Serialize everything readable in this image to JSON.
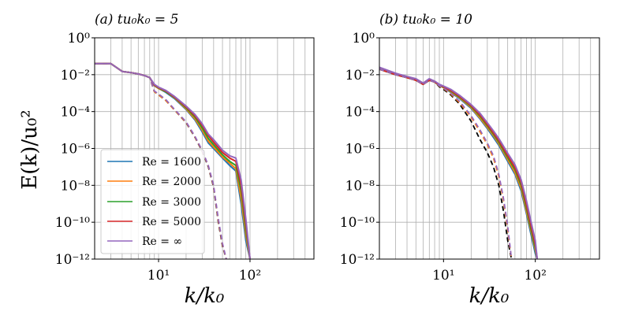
{
  "figure": {
    "ylabel": "E(k)/u₀²",
    "legend_title": "",
    "colors": {
      "re_1600": "#1f77b4",
      "re_2000": "#ff7f0e",
      "re_3000": "#2ca02c",
      "re_5000": "#d62728",
      "re_inf": "#9467bd",
      "grid": "#b0b0b0"
    }
  },
  "chart_data": [
    {
      "type": "line",
      "title": "(a) tu₀k₀ = 5",
      "xlabel": "k/k₀",
      "ylabel": "E(k)/u₀²",
      "xscale": "log",
      "yscale": "log",
      "xlim": [
        2,
        500
      ],
      "ylim": [
        1e-12,
        1
      ],
      "x_tick_labels": [
        "10¹",
        "10²"
      ],
      "y_tick_labels": [
        "10⁰",
        "10⁻²",
        "10⁻⁴",
        "10⁻⁶",
        "10⁻⁸",
        "10⁻¹⁰",
        "10⁻¹²"
      ],
      "grid": true,
      "legend": {
        "placement": "lower-left",
        "entries": [
          "Re = 1600",
          "Re = 2000",
          "Re = 3000",
          "Re = 5000",
          "Re = ∞"
        ]
      },
      "series": [
        {
          "name": "Re = 1600",
          "style": "solid",
          "x": [
            2,
            3,
            4,
            5,
            6,
            7,
            8,
            9,
            10,
            12,
            15,
            20,
            25,
            30,
            35,
            40,
            50,
            60,
            70,
            80,
            90,
            100
          ],
          "y": [
            0.04,
            0.04,
            0.015,
            0.013,
            0.011,
            0.009,
            0.007,
            0.0025,
            0.0018,
            0.0011,
            0.0005,
            0.00013,
            3.5e-05,
            8e-06,
            2e-06,
            1e-06,
            3e-07,
            1.2e-07,
            6e-08,
            1e-09,
            1e-11,
            1e-12
          ]
        },
        {
          "name": "Re = 2000",
          "style": "solid",
          "x": [
            2,
            3,
            4,
            5,
            6,
            7,
            8,
            9,
            10,
            12,
            15,
            20,
            25,
            30,
            35,
            40,
            50,
            60,
            70,
            80,
            90,
            100
          ],
          "y": [
            0.04,
            0.04,
            0.015,
            0.013,
            0.011,
            0.009,
            0.007,
            0.0026,
            0.0018,
            0.0012,
            0.00055,
            0.00014,
            4e-05,
            1e-05,
            2.5e-06,
            1.2e-06,
            3.5e-07,
            1.6e-07,
            8e-08,
            2e-09,
            2e-11,
            1e-12
          ]
        },
        {
          "name": "Re = 3000",
          "style": "solid",
          "x": [
            2,
            3,
            4,
            5,
            6,
            7,
            8,
            9,
            10,
            12,
            15,
            20,
            25,
            30,
            35,
            40,
            50,
            60,
            70,
            80,
            90,
            100
          ],
          "y": [
            0.04,
            0.04,
            0.015,
            0.013,
            0.011,
            0.009,
            0.007,
            0.0027,
            0.0019,
            0.0012,
            0.00058,
            0.00016,
            5e-05,
            1.3e-05,
            3.5e-06,
            1.6e-06,
            4.5e-07,
            2e-07,
            1.2e-07,
            5e-09,
            4e-11,
            1e-12
          ]
        },
        {
          "name": "Re = 5000",
          "style": "solid",
          "x": [
            2,
            3,
            4,
            5,
            6,
            7,
            8,
            9,
            10,
            12,
            15,
            20,
            25,
            30,
            35,
            40,
            50,
            60,
            70,
            80,
            90,
            100
          ],
          "y": [
            0.04,
            0.04,
            0.015,
            0.013,
            0.011,
            0.009,
            0.007,
            0.0028,
            0.002,
            0.0013,
            0.0006,
            0.00018,
            6e-05,
            1.8e-05,
            5e-06,
            2.2e-06,
            6e-07,
            3e-07,
            2e-07,
            1e-08,
            8e-11,
            1e-12
          ]
        },
        {
          "name": "Re = ∞",
          "style": "solid",
          "x": [
            2,
            3,
            4,
            5,
            6,
            7,
            8,
            9,
            10,
            12,
            15,
            20,
            25,
            30,
            35,
            40,
            50,
            60,
            70,
            80,
            90,
            100
          ],
          "y": [
            0.04,
            0.04,
            0.015,
            0.013,
            0.011,
            0.009,
            0.007,
            0.003,
            0.0021,
            0.0014,
            0.00065,
            0.0002,
            7e-05,
            2.2e-05,
            6e-06,
            3e-06,
            8e-07,
            4e-07,
            3e-07,
            2e-08,
            1.5e-10,
            1e-12
          ]
        },
        {
          "name": "filtered (black dashed)",
          "style": "dashed",
          "color": "#000000",
          "x": [
            2,
            3,
            4,
            5,
            6,
            7,
            8,
            9,
            10,
            12,
            15,
            20,
            25,
            30,
            35,
            40,
            45,
            50,
            55
          ],
          "y": [
            0.04,
            0.04,
            0.015,
            0.013,
            0.011,
            0.009,
            0.007,
            0.0012,
            0.0008,
            0.0004,
            0.00012,
            2.5e-05,
            4e-06,
            7e-07,
            1e-07,
            8e-09,
            1e-10,
            5e-12,
            1e-12
          ]
        },
        {
          "name": "filtered (orange dashed)",
          "style": "dashed",
          "color": "#ff7f0e",
          "x": [
            2,
            3,
            4,
            5,
            6,
            7,
            8,
            9,
            10,
            12,
            15,
            20,
            25,
            30,
            35,
            40,
            45,
            50,
            55
          ],
          "y": [
            0.04,
            0.04,
            0.015,
            0.013,
            0.011,
            0.009,
            0.007,
            0.0012,
            0.0008,
            0.0004,
            0.00012,
            2.6e-05,
            4.2e-06,
            7.5e-07,
            1.1e-07,
            9e-09,
            1.2e-10,
            6e-12,
            1e-12
          ]
        },
        {
          "name": "filtered (purple dashed)",
          "style": "dashed",
          "color": "#9467bd",
          "x": [
            2,
            3,
            4,
            5,
            6,
            7,
            8,
            9,
            10,
            12,
            15,
            20,
            25,
            30,
            35,
            40,
            45,
            50,
            55
          ],
          "y": [
            0.04,
            0.04,
            0.015,
            0.013,
            0.011,
            0.009,
            0.007,
            0.0013,
            0.0009,
            0.00045,
            0.00013,
            2.8e-05,
            4.5e-06,
            8e-07,
            1.2e-07,
            1e-08,
            1.5e-10,
            7e-12,
            1e-12
          ]
        }
      ]
    },
    {
      "type": "line",
      "title": "(b) tu₀k₀ = 10",
      "xlabel": "k/k₀",
      "ylabel": "",
      "xscale": "log",
      "yscale": "log",
      "xlim": [
        2,
        500
      ],
      "ylim": [
        1e-12,
        1
      ],
      "x_tick_labels": [
        "10¹",
        "10²"
      ],
      "y_tick_labels": [
        "10⁰",
        "10⁻²",
        "10⁻⁴",
        "10⁻⁶",
        "10⁻⁸",
        "10⁻¹⁰",
        "10⁻¹²"
      ],
      "grid": true,
      "series": [
        {
          "name": "Re = 1600",
          "style": "solid",
          "x": [
            2,
            3,
            4,
            5,
            6,
            7,
            8,
            9,
            10,
            12,
            15,
            20,
            25,
            30,
            35,
            40,
            50,
            60,
            70,
            80,
            90,
            100,
            105
          ],
          "y": [
            0.02,
            0.01,
            0.007,
            0.005,
            0.003,
            0.005,
            0.004,
            0.0025,
            0.002,
            0.0011,
            0.0005,
            0.00015,
            4e-05,
            1.2e-05,
            4e-06,
            1.5e-06,
            2e-07,
            4e-08,
            5e-09,
            3e-10,
            2e-11,
            2e-12,
            1e-12
          ]
        },
        {
          "name": "Re = 2000",
          "style": "solid",
          "x": [
            2,
            3,
            4,
            5,
            6,
            7,
            8,
            9,
            10,
            12,
            15,
            20,
            25,
            30,
            35,
            40,
            50,
            60,
            70,
            80,
            90,
            100,
            105
          ],
          "y": [
            0.02,
            0.01,
            0.007,
            0.005,
            0.003,
            0.005,
            0.004,
            0.0026,
            0.002,
            0.0012,
            0.00055,
            0.00017,
            4.5e-05,
            1.4e-05,
            5e-06,
            1.8e-06,
            2.5e-07,
            5e-08,
            7e-09,
            4e-10,
            3e-11,
            3e-12,
            1e-12
          ]
        },
        {
          "name": "Re = 3000",
          "style": "solid",
          "x": [
            2,
            3,
            4,
            5,
            6,
            7,
            8,
            9,
            10,
            12,
            15,
            20,
            25,
            30,
            35,
            40,
            50,
            60,
            70,
            80,
            90,
            100,
            105
          ],
          "y": [
            0.02,
            0.01,
            0.007,
            0.005,
            0.003,
            0.005,
            0.004,
            0.0027,
            0.0021,
            0.0013,
            0.0006,
            0.00019,
            5.5e-05,
            1.7e-05,
            6e-06,
            2.2e-06,
            3.2e-07,
            7e-08,
            1e-08,
            6e-10,
            4e-11,
            4e-12,
            1e-12
          ]
        },
        {
          "name": "Re = 5000",
          "style": "solid",
          "x": [
            2,
            3,
            4,
            5,
            6,
            7,
            8,
            9,
            10,
            12,
            15,
            20,
            25,
            30,
            35,
            40,
            50,
            60,
            70,
            80,
            90,
            100,
            105
          ],
          "y": [
            0.02,
            0.01,
            0.007,
            0.005,
            0.003,
            0.005,
            0.004,
            0.0028,
            0.0022,
            0.0014,
            0.00065,
            0.00021,
            6.5e-05,
            2e-05,
            7e-06,
            2.7e-06,
            4e-07,
            9e-08,
            1.4e-08,
            9e-10,
            6e-11,
            6e-12,
            1e-12
          ]
        },
        {
          "name": "Re = ∞",
          "style": "solid",
          "x": [
            2,
            3,
            4,
            5,
            6,
            7,
            8,
            9,
            10,
            12,
            15,
            20,
            25,
            30,
            35,
            40,
            50,
            60,
            70,
            80,
            90,
            100,
            105
          ],
          "y": [
            0.025,
            0.012,
            0.008,
            0.006,
            0.0035,
            0.006,
            0.0045,
            0.003,
            0.0024,
            0.0016,
            0.00075,
            0.00024,
            8e-05,
            2.5e-05,
            9e-06,
            3.5e-06,
            5.5e-07,
            1.3e-07,
            2e-08,
            1.5e-09,
            1e-10,
            1e-11,
            1e-12
          ]
        },
        {
          "name": "filtered (black dashed)",
          "style": "dashed",
          "color": "#000000",
          "x": [
            2,
            3,
            4,
            5,
            6,
            7,
            8,
            9,
            10,
            12,
            15,
            20,
            25,
            30,
            35,
            40,
            45,
            50,
            55
          ],
          "y": [
            0.02,
            0.01,
            0.007,
            0.005,
            0.003,
            0.005,
            0.004,
            0.0022,
            0.0016,
            0.0008,
            0.00025,
            3e-05,
            3e-06,
            6e-07,
            1e-07,
            1e-08,
            4e-10,
            1e-11,
            1e-12
          ]
        },
        {
          "name": "filtered (orange dashed)",
          "style": "dashed",
          "color": "#ff7f0e",
          "x": [
            2,
            3,
            4,
            5,
            6,
            7,
            8,
            9,
            10,
            12,
            15,
            20,
            25,
            30,
            35,
            40,
            45,
            50,
            55
          ],
          "y": [
            0.02,
            0.01,
            0.007,
            0.005,
            0.003,
            0.005,
            0.004,
            0.0024,
            0.0018,
            0.0009,
            0.0003,
            5e-05,
            8e-06,
            1.6e-06,
            3e-07,
            3e-08,
            1.5e-09,
            4e-11,
            1e-12
          ]
        },
        {
          "name": "filtered (purple dashed)",
          "style": "dashed",
          "color": "#9467bd",
          "x": [
            2,
            3,
            4,
            5,
            6,
            7,
            8,
            9,
            10,
            12,
            15,
            20,
            25,
            30,
            35,
            40,
            45,
            50,
            55
          ],
          "y": [
            0.02,
            0.01,
            0.007,
            0.005,
            0.003,
            0.005,
            0.004,
            0.0025,
            0.0019,
            0.001,
            0.00035,
            6e-05,
            1e-05,
            2e-06,
            4e-07,
            4e-08,
            2e-09,
            6e-11,
            1e-12
          ]
        }
      ]
    }
  ]
}
